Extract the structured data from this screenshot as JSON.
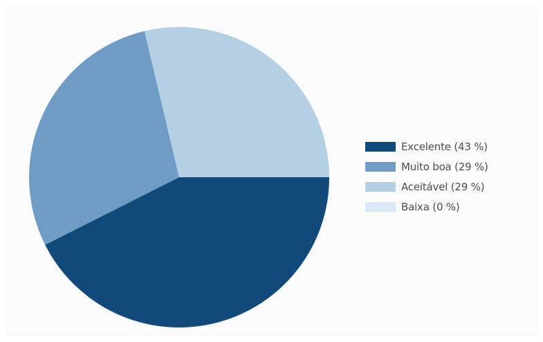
{
  "chart_data": {
    "type": "pie",
    "title": "",
    "slices": [
      {
        "label": "Excelente (43 %)",
        "value": 43,
        "color": "#114a7a"
      },
      {
        "label": "Muito boa (29 %)",
        "value": 29,
        "color": "#6f9cc4"
      },
      {
        "label": "Aceitável (29 %)",
        "value": 29,
        "color": "#b5cfe3"
      },
      {
        "label": "Baixa (0 %)",
        "value": 0,
        "color": "#d9e8f4"
      }
    ],
    "legend_position": "right"
  }
}
